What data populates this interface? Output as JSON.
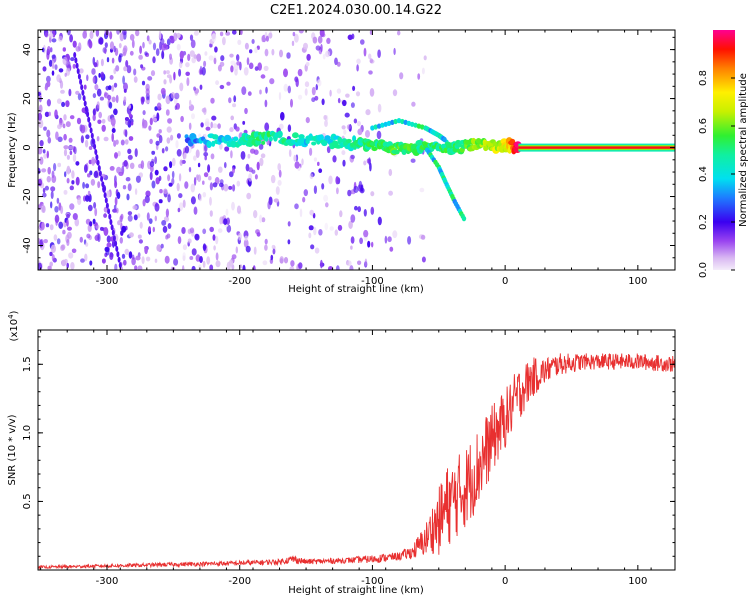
{
  "title": "C2E1.2024.030.00.14.G22",
  "chart_data": [
    {
      "type": "heatmap",
      "xlabel": "Height of straight line (km)",
      "ylabel": "Frequency (Hz)",
      "xlim": [
        -352,
        128
      ],
      "ylim": [
        -50,
        48
      ],
      "x_ticks": [
        "-300",
        "-200",
        "-100",
        "0",
        "100"
      ],
      "x_tick_values": [
        -300,
        -200,
        -100,
        0,
        100
      ],
      "y_ticks": [
        "40",
        "20",
        "0",
        "-20",
        "-40"
      ],
      "y_tick_values": [
        40,
        20,
        0,
        -20,
        -40
      ],
      "colorbar": {
        "label": "Normalized spectral amplitude",
        "range": [
          0,
          1
        ],
        "ticks": [
          "0.0",
          "0.2",
          "0.4",
          "0.6",
          "0.8"
        ],
        "tick_values": [
          0.0,
          0.2,
          0.4,
          0.6,
          0.8
        ]
      },
      "signal_track": [
        {
          "x": -240,
          "freq": 3,
          "amp": 0.3
        },
        {
          "x": -200,
          "freq": 3,
          "amp": 0.45
        },
        {
          "x": -180,
          "freq": 4,
          "amp": 0.5
        },
        {
          "x": -150,
          "freq": 3,
          "amp": 0.4
        },
        {
          "x": -120,
          "freq": 2,
          "amp": 0.45
        },
        {
          "x": -100,
          "freq": 1,
          "amp": 0.5
        },
        {
          "x": -80,
          "freq": 0,
          "amp": 0.55
        },
        {
          "x": -60,
          "freq": 0,
          "amp": 0.5
        },
        {
          "x": -40,
          "freq": 0,
          "amp": 0.5
        },
        {
          "x": -20,
          "freq": 1,
          "amp": 0.6
        },
        {
          "x": 0,
          "freq": 1,
          "amp": 0.7
        },
        {
          "x": 10,
          "freq": 0,
          "amp": 0.95
        },
        {
          "x": 128,
          "freq": 0,
          "amp": 0.95
        }
      ],
      "branches": [
        {
          "name": "",
          "points": [
            [
              -60,
              0
            ],
            [
              -50,
              -8
            ],
            [
              -45,
              -14
            ],
            [
              -38,
              -22
            ],
            [
              -30,
              -30
            ]
          ]
        },
        {
          "name": "",
          "points": [
            [
              -100,
              8
            ],
            [
              -80,
              11
            ],
            [
              -60,
              8
            ],
            [
              -50,
              5
            ],
            [
              -45,
              3
            ]
          ]
        }
      ]
    },
    {
      "type": "line",
      "xlabel": "Height of straight line (km)",
      "ylabel": "SNR (10 * v/v)",
      "multiplier": "(x10^4)",
      "xlim": [
        -352,
        128
      ],
      "ylim": [
        0,
        1.75
      ],
      "x_ticks": [
        "-300",
        "-200",
        "-100",
        "0",
        "100"
      ],
      "x_tick_values": [
        -300,
        -200,
        -100,
        0,
        100
      ],
      "y_ticks": [
        "1.5",
        "1.0",
        "0.5"
      ],
      "y_tick_values": [
        1.5,
        1.0,
        0.5
      ],
      "series": [
        {
          "name": "",
          "color": "#e83030",
          "x": [
            -352,
            -300,
            -250,
            -200,
            -170,
            -160,
            -150,
            -120,
            -100,
            -80,
            -70,
            -60,
            -55,
            -50,
            -45,
            -40,
            -30,
            -20,
            -10,
            0,
            10,
            20,
            30,
            40,
            60,
            80,
            100,
            128
          ],
          "mean": [
            0.02,
            0.03,
            0.04,
            0.05,
            0.06,
            0.08,
            0.06,
            0.07,
            0.08,
            0.1,
            0.13,
            0.22,
            0.3,
            0.35,
            0.45,
            0.5,
            0.6,
            0.75,
            0.95,
            1.1,
            1.28,
            1.4,
            1.45,
            1.5,
            1.52,
            1.52,
            1.52,
            1.5
          ],
          "noise": [
            0.01,
            0.012,
            0.015,
            0.018,
            0.02,
            0.03,
            0.02,
            0.02,
            0.03,
            0.03,
            0.05,
            0.12,
            0.18,
            0.25,
            0.3,
            0.3,
            0.3,
            0.3,
            0.25,
            0.22,
            0.2,
            0.15,
            0.1,
            0.08,
            0.06,
            0.06,
            0.06,
            0.06
          ]
        }
      ]
    }
  ]
}
